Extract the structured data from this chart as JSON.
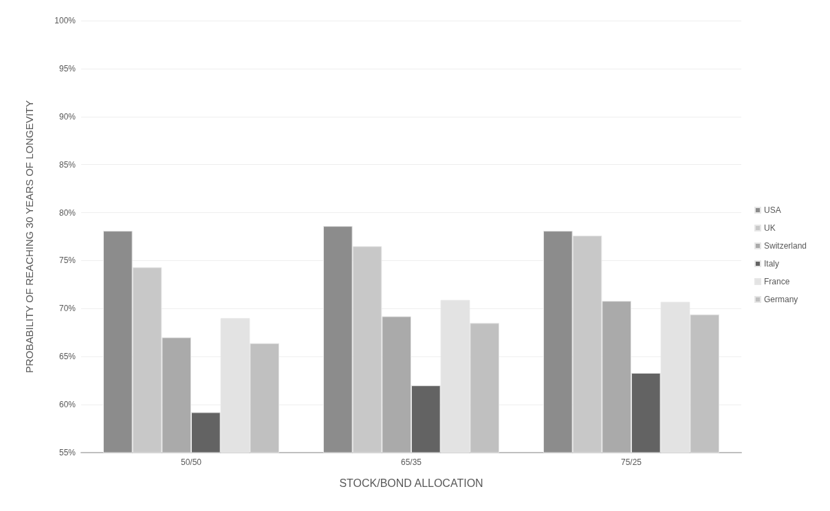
{
  "chart_data": {
    "type": "bar",
    "xlabel": "STOCK/BOND ALLOCATION",
    "ylabel": "PROBABILITY OF REACHING 30 YEARS OF LONGEVITY",
    "categories": [
      "50/50",
      "65/35",
      "75/25"
    ],
    "series": [
      {
        "name": "USA",
        "color": "#8c8c8c",
        "values": [
          78.1,
          78.6,
          78.1
        ]
      },
      {
        "name": "UK",
        "color": "#c8c8c8",
        "values": [
          74.3,
          76.5,
          77.6
        ]
      },
      {
        "name": "Switzerland",
        "color": "#aaaaaa",
        "values": [
          67.0,
          69.2,
          70.8
        ]
      },
      {
        "name": "Italy",
        "color": "#636363",
        "values": [
          59.2,
          62.0,
          63.3
        ]
      },
      {
        "name": "France",
        "color": "#e3e3e3",
        "values": [
          69.0,
          70.9,
          70.7
        ]
      },
      {
        "name": "Germany",
        "color": "#c0c0c0",
        "values": [
          66.4,
          68.5,
          69.4
        ]
      }
    ],
    "ylim": [
      55,
      100
    ],
    "yticks": [
      {
        "value": 55,
        "label": "55%"
      },
      {
        "value": 60,
        "label": "60%"
      },
      {
        "value": 65,
        "label": "65%"
      },
      {
        "value": 70,
        "label": "70%"
      },
      {
        "value": 75,
        "label": "75%"
      },
      {
        "value": 80,
        "label": "80%"
      },
      {
        "value": 85,
        "label": "85%"
      },
      {
        "value": 90,
        "label": "90%"
      },
      {
        "value": 95,
        "label": "95%"
      },
      {
        "value": 100,
        "label": "100%"
      }
    ],
    "grid": "y",
    "legend": "right"
  }
}
